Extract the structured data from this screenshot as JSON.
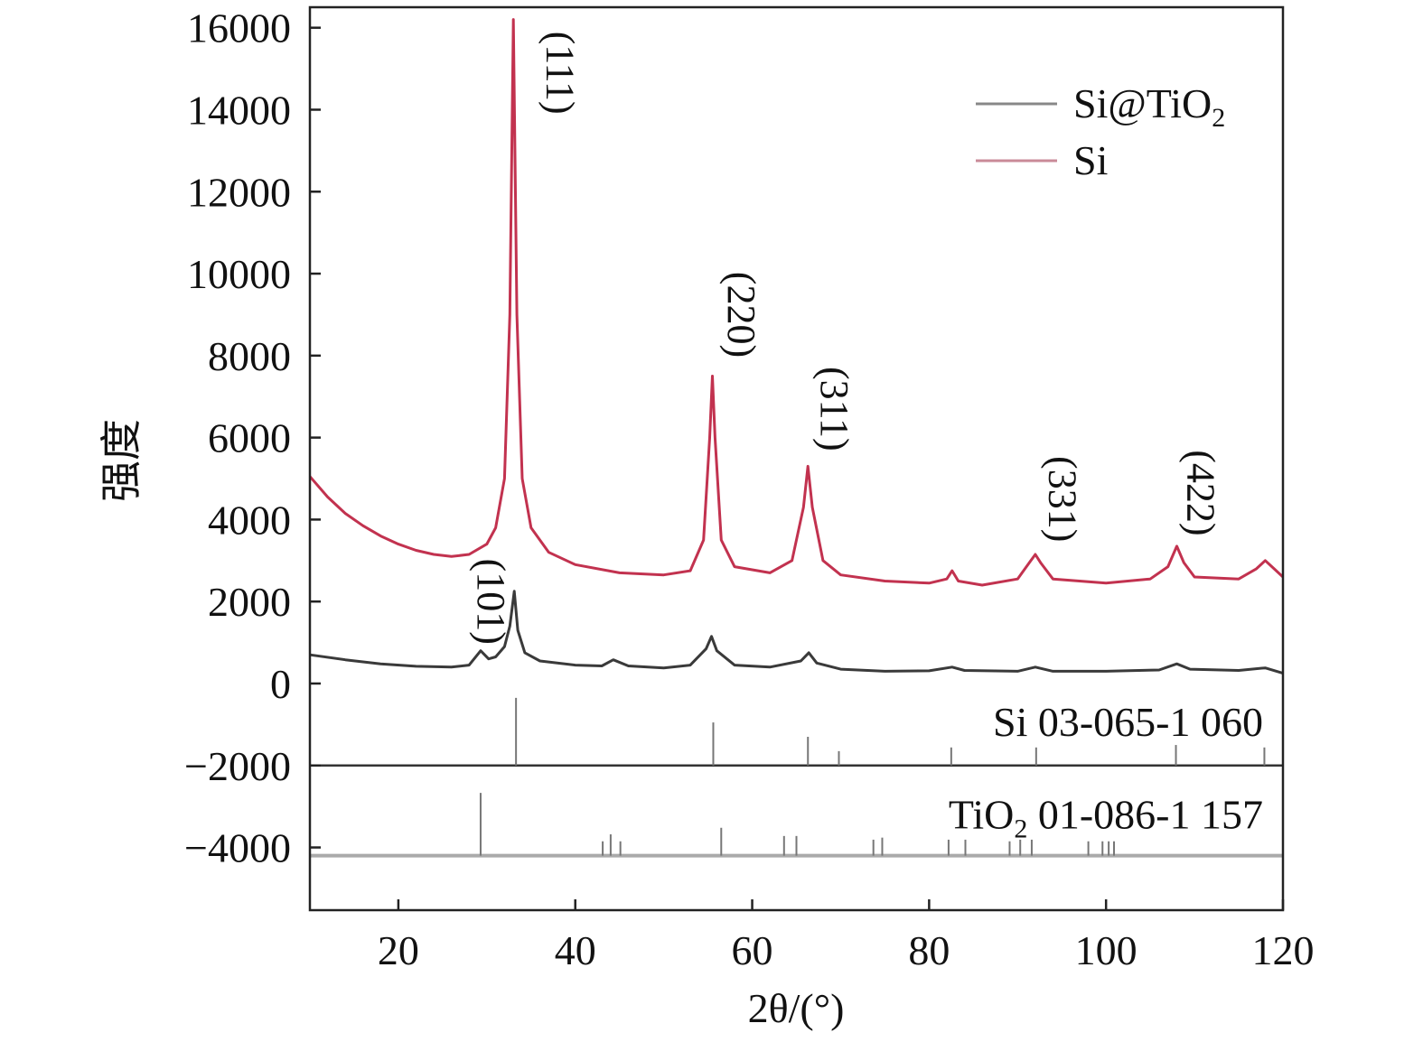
{
  "chart_data": {
    "type": "line",
    "title": "",
    "xlabel": "2θ/(°)",
    "ylabel": "强度",
    "xlim": [
      10,
      120
    ],
    "ylim": [
      -5530,
      16500
    ],
    "xticks": [
      20,
      40,
      60,
      80,
      100,
      120
    ],
    "yticks": [
      -4000,
      -2000,
      0,
      2000,
      4000,
      6000,
      8000,
      10000,
      12000,
      14000,
      16000
    ],
    "grid": false,
    "legend_position": "top-right",
    "series": [
      {
        "name": "Si@TiO2",
        "legend_main": "Si@TiO",
        "legend_sub": "2",
        "color": "#3a3a3a",
        "points": [
          [
            10,
            700
          ],
          [
            14,
            580
          ],
          [
            18,
            480
          ],
          [
            22,
            420
          ],
          [
            26,
            400
          ],
          [
            28,
            450
          ],
          [
            29.3,
            800
          ],
          [
            30.2,
            600
          ],
          [
            31,
            650
          ],
          [
            32,
            900
          ],
          [
            32.6,
            1400
          ],
          [
            33.1,
            2250
          ],
          [
            33.5,
            1300
          ],
          [
            34.3,
            750
          ],
          [
            36,
            550
          ],
          [
            40,
            450
          ],
          [
            43,
            430
          ],
          [
            44.3,
            580
          ],
          [
            46,
            430
          ],
          [
            50,
            380
          ],
          [
            53,
            450
          ],
          [
            54.8,
            850
          ],
          [
            55.4,
            1150
          ],
          [
            56,
            800
          ],
          [
            58,
            450
          ],
          [
            62,
            400
          ],
          [
            65.5,
            550
          ],
          [
            66.4,
            750
          ],
          [
            67.3,
            500
          ],
          [
            70,
            350
          ],
          [
            75,
            300
          ],
          [
            80,
            310
          ],
          [
            82.6,
            400
          ],
          [
            84,
            320
          ],
          [
            90,
            300
          ],
          [
            92,
            400
          ],
          [
            94,
            300
          ],
          [
            100,
            300
          ],
          [
            106,
            330
          ],
          [
            108,
            480
          ],
          [
            109.5,
            350
          ],
          [
            115,
            320
          ],
          [
            118,
            380
          ],
          [
            120,
            250
          ]
        ]
      },
      {
        "name": "Si",
        "legend_main": "Si",
        "legend_sub": "",
        "color": "#c2324f",
        "points": [
          [
            10,
            5050
          ],
          [
            12,
            4550
          ],
          [
            14,
            4150
          ],
          [
            16,
            3850
          ],
          [
            18,
            3600
          ],
          [
            20,
            3400
          ],
          [
            22,
            3250
          ],
          [
            24,
            3150
          ],
          [
            26,
            3100
          ],
          [
            28,
            3150
          ],
          [
            30,
            3400
          ],
          [
            31,
            3800
          ],
          [
            32,
            5000
          ],
          [
            32.6,
            9000
          ],
          [
            33.0,
            16200
          ],
          [
            33.4,
            9000
          ],
          [
            34,
            5000
          ],
          [
            35,
            3800
          ],
          [
            37,
            3200
          ],
          [
            40,
            2900
          ],
          [
            45,
            2700
          ],
          [
            50,
            2650
          ],
          [
            53,
            2750
          ],
          [
            54.5,
            3500
          ],
          [
            55.2,
            6000
          ],
          [
            55.5,
            7500
          ],
          [
            55.8,
            6000
          ],
          [
            56.5,
            3500
          ],
          [
            58,
            2850
          ],
          [
            62,
            2700
          ],
          [
            64.5,
            3000
          ],
          [
            65.8,
            4300
          ],
          [
            66.3,
            5300
          ],
          [
            66.8,
            4300
          ],
          [
            68,
            3000
          ],
          [
            70,
            2650
          ],
          [
            75,
            2500
          ],
          [
            80,
            2450
          ],
          [
            82,
            2550
          ],
          [
            82.6,
            2750
          ],
          [
            83.3,
            2500
          ],
          [
            86,
            2400
          ],
          [
            90,
            2550
          ],
          [
            91.5,
            3000
          ],
          [
            92,
            3150
          ],
          [
            92.6,
            2950
          ],
          [
            94,
            2550
          ],
          [
            100,
            2450
          ],
          [
            105,
            2550
          ],
          [
            107,
            2850
          ],
          [
            108,
            3350
          ],
          [
            108.8,
            2950
          ],
          [
            110,
            2600
          ],
          [
            115,
            2550
          ],
          [
            117,
            2800
          ],
          [
            118,
            3000
          ],
          [
            119,
            2800
          ],
          [
            120,
            2600
          ]
        ]
      }
    ],
    "reference_patterns": [
      {
        "label_main": "Si 03-065-1 060",
        "label_sub": "",
        "label_rest": "",
        "baseline": -2000,
        "color": "#777777",
        "baseline_color": "#333333",
        "sticks": [
          [
            33.3,
            -350
          ],
          [
            55.6,
            -950
          ],
          [
            66.3,
            -1300
          ],
          [
            69.8,
            -1650
          ],
          [
            82.5,
            -1560
          ],
          [
            92.1,
            -1560
          ],
          [
            107.9,
            -1500
          ],
          [
            117.9,
            -1560
          ]
        ]
      },
      {
        "label_main": "TiO",
        "label_sub": "2",
        "label_rest": " 01-086-1 157",
        "baseline": -4200,
        "color": "#777777",
        "baseline_color": "#aaaaaa",
        "sticks": [
          [
            29.3,
            -2670
          ],
          [
            43.1,
            -3850
          ],
          [
            44.0,
            -3680
          ],
          [
            45.1,
            -3850
          ],
          [
            56.5,
            -3520
          ],
          [
            63.6,
            -3720
          ],
          [
            65.0,
            -3720
          ],
          [
            73.7,
            -3810
          ],
          [
            74.7,
            -3760
          ],
          [
            82.2,
            -3810
          ],
          [
            84.1,
            -3810
          ],
          [
            89.1,
            -3850
          ],
          [
            90.3,
            -3810
          ],
          [
            91.6,
            -3810
          ],
          [
            98.0,
            -3850
          ],
          [
            99.6,
            -3850
          ],
          [
            100.3,
            -3850
          ],
          [
            100.9,
            -3850
          ]
        ]
      }
    ],
    "annotations": [
      {
        "text": "(111)",
        "x": 36.8,
        "y": 14900
      },
      {
        "text": "(220)",
        "x": 57.3,
        "y": 9000
      },
      {
        "text": "(311)",
        "x": 67.8,
        "y": 6700
      },
      {
        "text": "(331)",
        "x": 93.6,
        "y": 4500
      },
      {
        "text": "(422)",
        "x": 109.2,
        "y": 4650
      },
      {
        "text": "(101)",
        "x": 29.0,
        "y": 2000
      }
    ]
  }
}
